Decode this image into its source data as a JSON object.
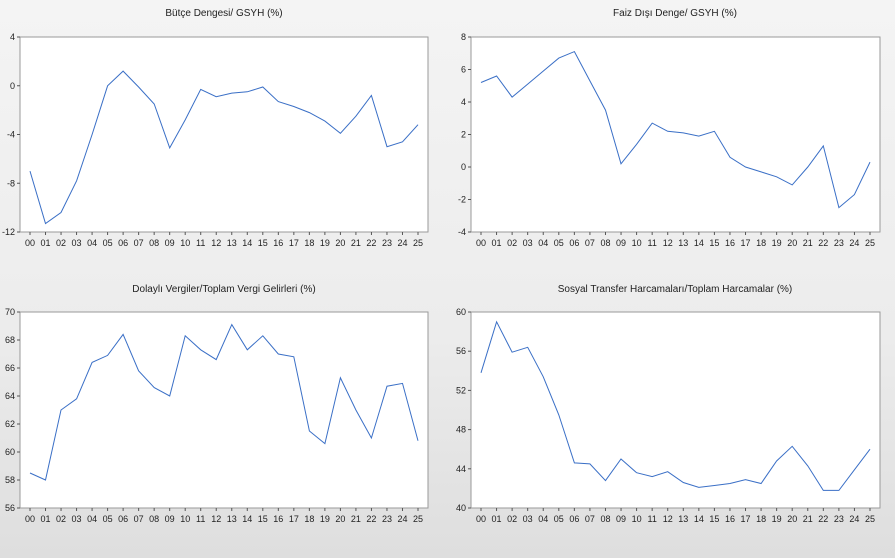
{
  "figure": {
    "line_color": "#3a6fc6",
    "plot_bg": "#ffffff",
    "page_bg": "#ececec"
  },
  "chart_data": [
    {
      "type": "line",
      "title": "Bütçe Dengesi/ GSYH (%)",
      "x": [
        "00",
        "01",
        "02",
        "03",
        "04",
        "05",
        "06",
        "07",
        "08",
        "09",
        "10",
        "11",
        "12",
        "13",
        "14",
        "15",
        "16",
        "17",
        "18",
        "19",
        "20",
        "21",
        "22",
        "23",
        "24",
        "25"
      ],
      "values": [
        -7.0,
        -11.3,
        -10.4,
        -7.8,
        -4.0,
        0.0,
        1.2,
        -0.1,
        -1.5,
        -5.1,
        -2.8,
        -0.3,
        -0.9,
        -0.6,
        -0.5,
        -0.1,
        -1.3,
        -1.7,
        -2.2,
        -2.9,
        -3.9,
        -2.5,
        -0.8,
        -5.0,
        -4.6,
        -3.2
      ],
      "yticks": [
        4,
        0,
        -4,
        -8,
        -12
      ],
      "ylim": [
        -12,
        4
      ]
    },
    {
      "type": "line",
      "title": "Faiz Dışı Denge/ GSYH (%)",
      "x": [
        "00",
        "01",
        "02",
        "03",
        "04",
        "05",
        "06",
        "07",
        "08",
        "09",
        "10",
        "11",
        "12",
        "13",
        "14",
        "15",
        "16",
        "17",
        "18",
        "19",
        "20",
        "21",
        "22",
        "23",
        "24",
        "25"
      ],
      "values": [
        5.2,
        5.6,
        4.3,
        5.1,
        5.9,
        6.7,
        7.1,
        5.3,
        3.5,
        0.2,
        1.4,
        2.7,
        2.2,
        2.1,
        1.9,
        2.2,
        0.6,
        0.0,
        -0.3,
        -0.6,
        -1.1,
        0.0,
        1.3,
        -2.5,
        -1.7,
        0.3
      ],
      "yticks": [
        8,
        6,
        4,
        2,
        0,
        -2,
        -4
      ],
      "ylim": [
        -4,
        8
      ]
    },
    {
      "type": "line",
      "title": "Dolaylı Vergiler/Toplam Vergi Gelirleri (%)",
      "x": [
        "00",
        "01",
        "02",
        "03",
        "04",
        "05",
        "06",
        "07",
        "08",
        "09",
        "10",
        "11",
        "12",
        "13",
        "14",
        "15",
        "16",
        "17",
        "18",
        "19",
        "20",
        "21",
        "22",
        "23",
        "24",
        "25"
      ],
      "values": [
        58.5,
        58.0,
        63.0,
        63.8,
        66.4,
        66.9,
        68.4,
        65.8,
        64.6,
        64.0,
        68.3,
        67.3,
        66.6,
        69.1,
        67.3,
        68.3,
        67.0,
        66.8,
        61.5,
        60.6,
        65.3,
        63.0,
        61.0,
        64.7,
        64.9,
        60.8
      ],
      "yticks": [
        70,
        68,
        66,
        64,
        62,
        60,
        58,
        56
      ],
      "ylim": [
        56,
        70
      ]
    },
    {
      "type": "line",
      "title": "Sosyal Transfer Harcamaları/Toplam Harcamalar (%)",
      "x": [
        "00",
        "01",
        "02",
        "03",
        "04",
        "05",
        "06",
        "07",
        "08",
        "09",
        "10",
        "11",
        "12",
        "13",
        "14",
        "15",
        "16",
        "17",
        "18",
        "19",
        "20",
        "21",
        "22",
        "23",
        "24",
        "25"
      ],
      "values": [
        53.8,
        59.0,
        55.9,
        56.4,
        53.4,
        49.5,
        44.6,
        44.5,
        42.8,
        45.0,
        43.6,
        43.2,
        43.7,
        42.6,
        42.1,
        42.3,
        42.5,
        42.9,
        42.5,
        44.8,
        46.3,
        44.3,
        41.8,
        41.8,
        43.9,
        46.0
      ],
      "yticks": [
        60,
        56,
        52,
        48,
        44,
        40
      ],
      "ylim": [
        40,
        60
      ]
    }
  ]
}
